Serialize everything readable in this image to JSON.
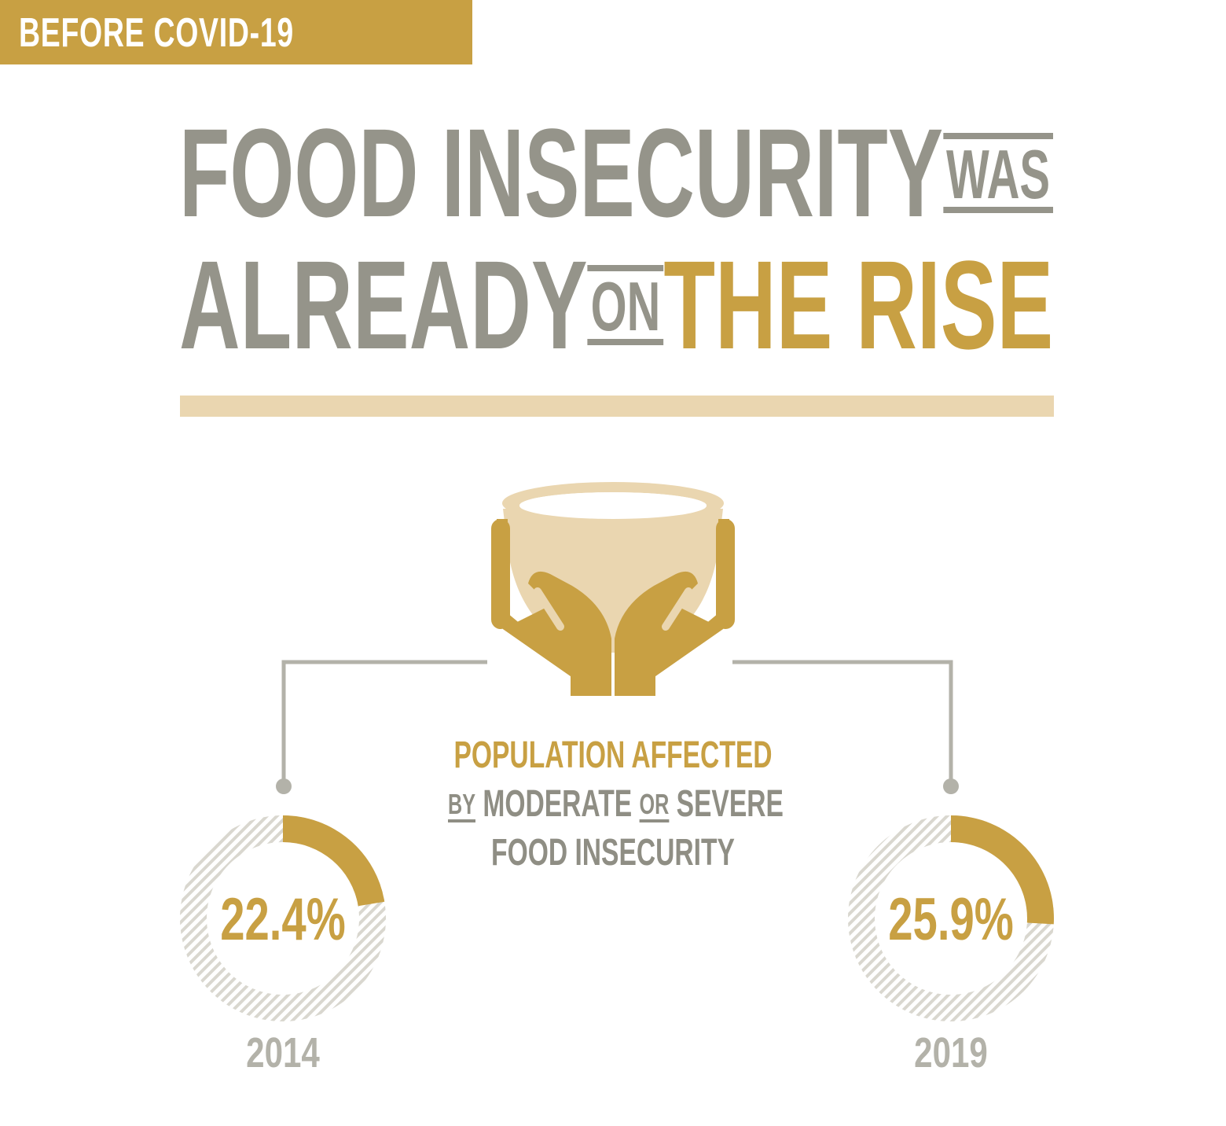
{
  "tag": {
    "label": "BEFORE COVID-19"
  },
  "headline": {
    "line1_main": "FOOD INSECURITY",
    "line1_small": "WAS",
    "line2_main": "ALREADY",
    "line2_small": "ON",
    "line2_highlight": "THE RISE"
  },
  "caption": {
    "line1": "POPULATION AFFECTED",
    "line2_small1": "BY",
    "line2_word1": "MODERATE",
    "line2_small2": "OR",
    "line2_word2": "SEVERE",
    "line3": "FOOD INSECURITY"
  },
  "icon": {
    "name": "hands-holding-bowl-icon"
  },
  "colors": {
    "gold": "#c8a043",
    "grey": "#95948a",
    "light_gold": "#ead6b0",
    "hatch": "#d9d7cf",
    "year_grey": "#b3b2a9"
  },
  "chart_data": [
    {
      "type": "pie",
      "label": "22.4%",
      "value": 22.4,
      "max": 100,
      "category": "2014"
    },
    {
      "type": "pie",
      "label": "25.9%",
      "value": 25.9,
      "max": 100,
      "category": "2019"
    }
  ]
}
